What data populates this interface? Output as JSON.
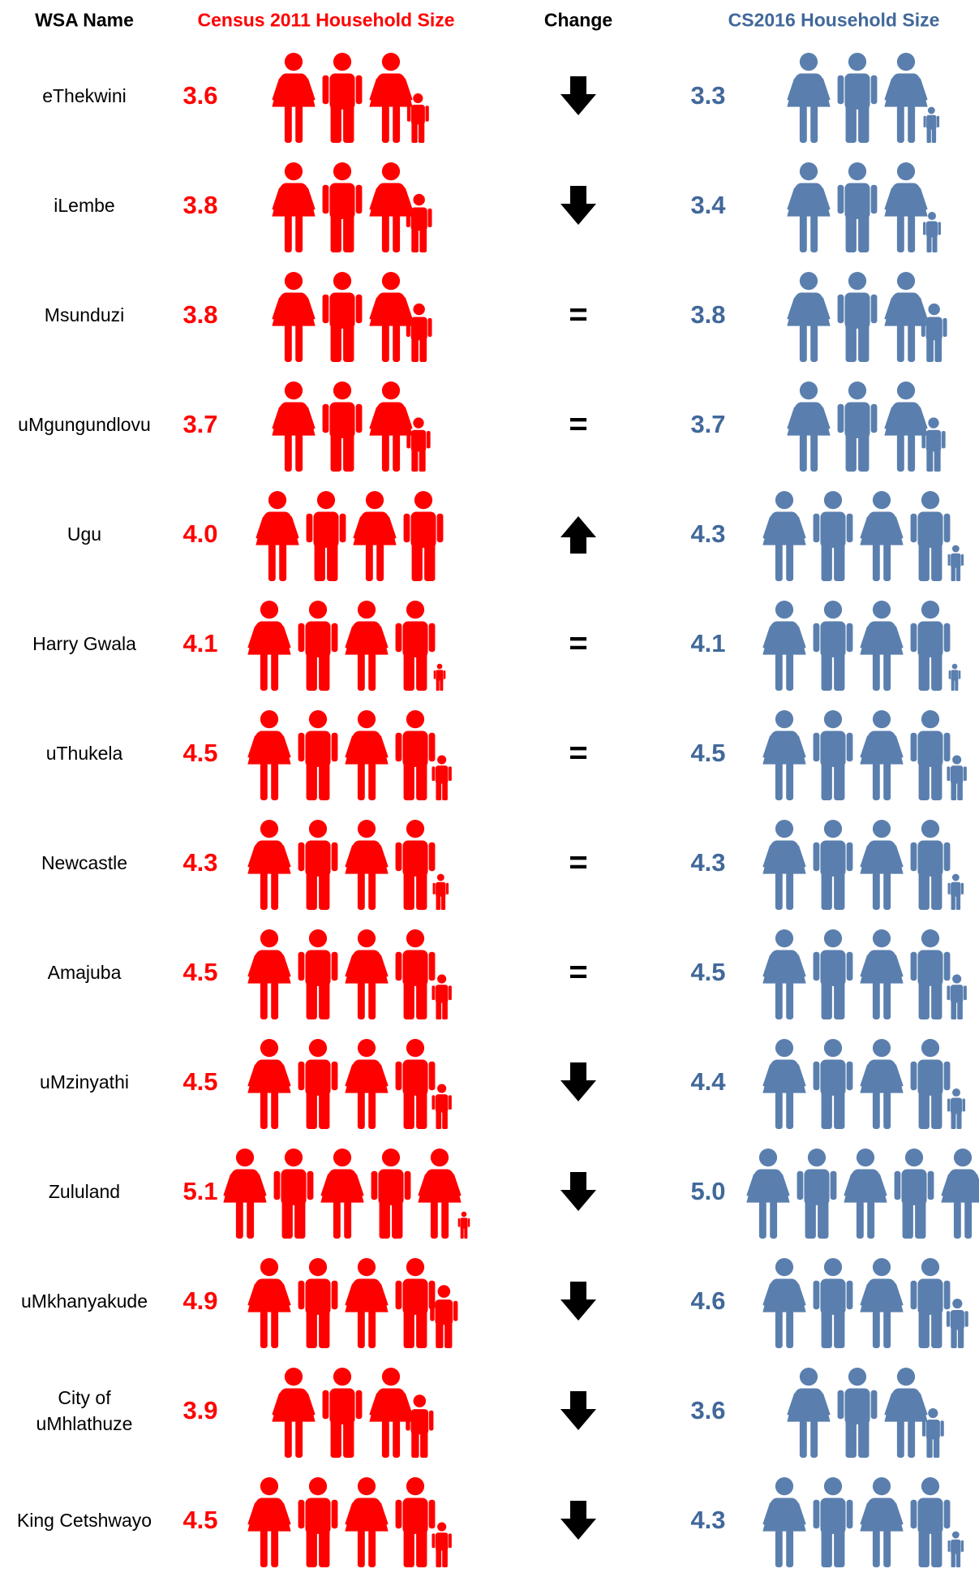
{
  "table": {
    "headers": [
      "WSA Name",
      "Census 2011 Household Size",
      "Change",
      "CS2016 Household Size"
    ],
    "rows": [
      {
        "name": "eThekwini",
        "census2011": "3.6",
        "cs2016": "3.3"
      },
      {
        "name": "iLembe",
        "census2011": "3.8",
        "cs2016": "3.4"
      },
      {
        "name": "Msunduzi",
        "census2011": "3.8",
        "change": "=",
        "cs2016": "3.8"
      },
      {
        "name": "uMgungundlovu",
        "census2011": "3.7",
        "change": "=",
        "cs2016": "3.7"
      },
      {
        "name": "Ugu",
        "census2011": "4.0",
        "cs2016": "4.3"
      },
      {
        "name": "Harry Gwala",
        "census2011": "4.1",
        "change": "=",
        "cs2016": "4.1"
      },
      {
        "name": "uThukela",
        "census2011": "4.5",
        "change": "=",
        "cs2016": "4.5"
      },
      {
        "name": "Newcastle",
        "census2011": "4.3",
        "change": "=",
        "cs2016": "4.3"
      },
      {
        "name": "Amajuba",
        "census2011": "4.5",
        "change": "=",
        "cs2016": "4.5"
      },
      {
        "name": "uMzinyathi",
        "census2011": "4.5",
        "cs2016": "4.4"
      },
      {
        "name": "Zululand",
        "census2011": "5.1",
        "cs2016": "5.0"
      },
      {
        "name": "uMkhanyakude",
        "census2011": "4.9",
        "cs2016": "4.6"
      },
      {
        "name": "City of uMhlathuze",
        "census2011": "3.9",
        "cs2016": "3.6"
      },
      {
        "name": "King Cetshwayo",
        "census2011": "4.5",
        "cs2016": "4.3"
      }
    ],
    "colors": {
      "census2011": "#ff0000",
      "cs2016": "#5a7fae",
      "cs2016_text": "#41689a",
      "change": "#000000"
    }
  }
}
